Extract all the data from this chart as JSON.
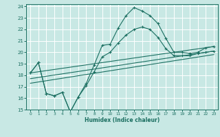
{
  "xlabel": "Humidex (Indice chaleur)",
  "xlim": [
    -0.5,
    23.5
  ],
  "ylim": [
    15,
    24.2
  ],
  "yticks": [
    15,
    16,
    17,
    18,
    19,
    20,
    21,
    22,
    23,
    24
  ],
  "xticks": [
    0,
    1,
    2,
    3,
    4,
    5,
    6,
    7,
    8,
    9,
    10,
    11,
    12,
    13,
    14,
    15,
    16,
    17,
    18,
    19,
    20,
    21,
    22,
    23
  ],
  "background_color": "#c8e8e4",
  "grid_color": "#ffffff",
  "line_color": "#1a6e60",
  "line1_x": [
    0,
    1,
    2,
    3,
    4,
    5,
    6,
    7,
    8,
    9,
    10,
    11,
    12,
    13,
    14,
    15,
    16,
    17,
    18,
    19,
    20,
    21,
    22,
    23
  ],
  "line1_y": [
    18.2,
    19.1,
    16.4,
    16.2,
    16.5,
    14.8,
    16.1,
    17.3,
    18.9,
    20.6,
    20.7,
    22.1,
    23.2,
    23.9,
    23.6,
    23.2,
    22.5,
    21.2,
    20.0,
    20.0,
    19.9,
    20.0,
    20.4,
    20.5
  ],
  "line2_x": [
    0,
    1,
    2,
    3,
    4,
    5,
    6,
    7,
    8,
    9,
    10,
    11,
    12,
    13,
    14,
    15,
    16,
    17,
    18,
    19,
    20,
    21,
    22,
    23
  ],
  "line2_y": [
    18.2,
    19.1,
    16.4,
    16.2,
    16.5,
    14.8,
    16.1,
    17.1,
    18.3,
    19.6,
    20.0,
    20.8,
    21.5,
    22.0,
    22.2,
    22.0,
    21.3,
    20.3,
    19.7,
    19.7,
    19.7,
    19.9,
    20.0,
    20.1
  ],
  "line3_x": [
    0,
    23
  ],
  "line3_y": [
    18.2,
    20.5
  ],
  "line4_x": [
    0,
    23
  ],
  "line4_y": [
    17.7,
    20.1
  ],
  "line5_x": [
    0,
    23
  ],
  "line5_y": [
    17.3,
    19.8
  ]
}
